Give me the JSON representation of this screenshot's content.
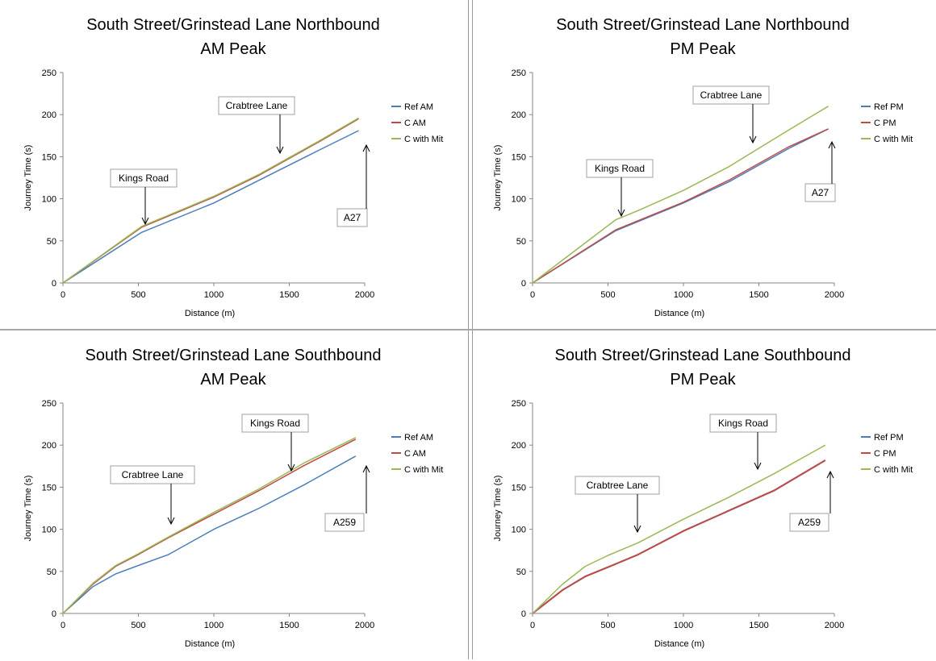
{
  "colors": {
    "ref": "#4a7ebb",
    "c": "#be4b48",
    "mit": "#98b954"
  },
  "chart_data": [
    {
      "type": "line",
      "title_line1": "South Street/Grinstead Lane Northbound",
      "title_line2": "AM Peak",
      "xlabel": "Distance (m)",
      "ylabel": "Journey Time (s)",
      "xlim": [
        0,
        2000
      ],
      "ylim": [
        0,
        250
      ],
      "xticks": [
        0,
        500,
        1000,
        1500,
        2000
      ],
      "yticks": [
        0,
        50,
        100,
        150,
        200,
        250
      ],
      "legend_position": "right",
      "series": [
        {
          "name": "Ref AM",
          "color_key": "ref",
          "width": 1.5,
          "points": [
            [
              0,
              0
            ],
            [
              520,
              60
            ],
            [
              1000,
              95
            ],
            [
              1300,
              122
            ],
            [
              1700,
              158
            ],
            [
              1960,
              181
            ]
          ]
        },
        {
          "name": "C AM",
          "color_key": "c",
          "width": 1.5,
          "points": [
            [
              0,
              0
            ],
            [
              520,
              66
            ],
            [
              1000,
              102
            ],
            [
              1300,
              128
            ],
            [
              1700,
              168
            ],
            [
              1960,
              195
            ]
          ]
        },
        {
          "name": "C with Mit",
          "color_key": "mit",
          "width": 1.5,
          "points": [
            [
              0,
              0
            ],
            [
              520,
              67
            ],
            [
              1000,
              103
            ],
            [
              1300,
              129
            ],
            [
              1700,
              169
            ],
            [
              1960,
              196
            ]
          ]
        }
      ],
      "annotations": [
        {
          "label": "Kings Road",
          "box_x": 137,
          "box_y": 210,
          "box_w": 82,
          "box_h": 22,
          "arrow": [
            [
              180,
              232
            ],
            [
              180,
              278
            ]
          ]
        },
        {
          "label": "Crabtree Lane",
          "box_x": 271,
          "box_y": 120,
          "box_w": 94,
          "box_h": 22,
          "arrow": [
            [
              347,
              142
            ],
            [
              347,
              190
            ]
          ]
        },
        {
          "label": "A27",
          "box_x": 418,
          "box_y": 259,
          "box_w": 37,
          "box_h": 22,
          "arrow": [
            [
              454,
              259
            ],
            [
              454,
              180
            ]
          ]
        }
      ]
    },
    {
      "type": "line",
      "title_line1": "South Street/Grinstead Lane Northbound",
      "title_line2": "PM Peak",
      "xlabel": "Distance (m)",
      "ylabel": "Journey Time (s)",
      "xlim": [
        0,
        2000
      ],
      "ylim": [
        0,
        250
      ],
      "xticks": [
        0,
        500,
        1000,
        1500,
        2000
      ],
      "yticks": [
        0,
        50,
        100,
        150,
        200,
        250
      ],
      "legend_position": "right",
      "series": [
        {
          "name": "Ref PM",
          "color_key": "ref",
          "width": 1.5,
          "points": [
            [
              0,
              0
            ],
            [
              550,
              62
            ],
            [
              1000,
              95
            ],
            [
              1300,
              120
            ],
            [
              1700,
              160
            ],
            [
              1960,
              183
            ]
          ]
        },
        {
          "name": "C PM",
          "color_key": "c",
          "width": 1.5,
          "points": [
            [
              0,
              0
            ],
            [
              550,
              63
            ],
            [
              1000,
              96
            ],
            [
              1300,
              122
            ],
            [
              1700,
              162
            ],
            [
              1960,
              183
            ]
          ]
        },
        {
          "name": "C with Mit",
          "color_key": "mit",
          "width": 1.5,
          "points": [
            [
              0,
              0
            ],
            [
              550,
              75
            ],
            [
              700,
              86
            ],
            [
              1000,
              110
            ],
            [
              1300,
              138
            ],
            [
              1700,
              182
            ],
            [
              1960,
              210
            ]
          ]
        }
      ],
      "annotations": [
        {
          "label": "Kings Road",
          "box_x": 145,
          "box_y": 198,
          "box_w": 82,
          "box_h": 22,
          "arrow": [
            [
              188,
              220
            ],
            [
              188,
              268
            ]
          ]
        },
        {
          "label": "Crabtree Lane",
          "box_x": 277,
          "box_y": 107,
          "box_w": 94,
          "box_h": 22,
          "arrow": [
            [
              351,
              129
            ],
            [
              351,
              177
            ]
          ]
        },
        {
          "label": "A27",
          "box_x": 416,
          "box_y": 228,
          "box_w": 37,
          "box_h": 22,
          "arrow": [
            [
              449,
              228
            ],
            [
              449,
              176
            ]
          ]
        }
      ]
    },
    {
      "type": "line",
      "title_line1": "South Street/Grinstead Lane Southbound",
      "title_line2": "AM Peak",
      "xlabel": "Distance (m)",
      "ylabel": "Journey Time (s)",
      "xlim": [
        0,
        2000
      ],
      "ylim": [
        0,
        250
      ],
      "xticks": [
        0,
        500,
        1000,
        1500,
        2000
      ],
      "yticks": [
        0,
        50,
        100,
        150,
        200,
        250
      ],
      "legend_position": "right",
      "series": [
        {
          "name": "Ref AM",
          "color_key": "ref",
          "width": 1.5,
          "points": [
            [
              0,
              0
            ],
            [
              200,
              32
            ],
            [
              350,
              47
            ],
            [
              500,
              57
            ],
            [
              700,
              70
            ],
            [
              1000,
              100
            ],
            [
              1300,
              125
            ],
            [
              1600,
              153
            ],
            [
              1940,
              187
            ]
          ]
        },
        {
          "name": "C AM",
          "color_key": "c",
          "width": 1.5,
          "points": [
            [
              0,
              0
            ],
            [
              200,
              35
            ],
            [
              350,
              56
            ],
            [
              500,
              70
            ],
            [
              700,
              90
            ],
            [
              1000,
              118
            ],
            [
              1300,
              146
            ],
            [
              1600,
              176
            ],
            [
              1940,
              207
            ]
          ]
        },
        {
          "name": "C with Mit",
          "color_key": "mit",
          "width": 1.5,
          "points": [
            [
              0,
              0
            ],
            [
              200,
              36
            ],
            [
              350,
              57
            ],
            [
              500,
              71
            ],
            [
              700,
              91
            ],
            [
              1000,
              120
            ],
            [
              1300,
              148
            ],
            [
              1600,
              179
            ],
            [
              1940,
              209
            ]
          ]
        }
      ],
      "annotations": [
        {
          "label": "Crabtree Lane",
          "box_x": 137,
          "box_y": 168,
          "box_w": 104,
          "box_h": 22,
          "arrow": [
            [
              212,
              190
            ],
            [
              212,
              240
            ]
          ]
        },
        {
          "label": "Kings Road",
          "box_x": 300,
          "box_y": 104,
          "box_w": 82,
          "box_h": 22,
          "arrow": [
            [
              361,
              126
            ],
            [
              361,
              174
            ]
          ]
        },
        {
          "label": "A259",
          "box_x": 403,
          "box_y": 227,
          "box_w": 48,
          "box_h": 22,
          "arrow": [
            [
              454,
              227
            ],
            [
              454,
              168
            ]
          ]
        }
      ]
    },
    {
      "type": "line",
      "title_line1": "South Street/Grinstead Lane Southbound",
      "title_line2": "PM Peak",
      "xlabel": "Distance (m)",
      "ylabel": "Journey Time (s)",
      "xlim": [
        0,
        2000
      ],
      "ylim": [
        0,
        250
      ],
      "xticks": [
        0,
        500,
        1000,
        1500,
        2000
      ],
      "yticks": [
        0,
        50,
        100,
        150,
        200,
        250
      ],
      "legend_position": "right",
      "series": [
        {
          "name": "Ref PM",
          "color_key": "ref",
          "width": 2,
          "points": [
            [
              0,
              0
            ],
            [
              200,
              28
            ],
            [
              350,
              44
            ],
            [
              500,
              55
            ],
            [
              700,
              70
            ],
            [
              1000,
              98
            ],
            [
              1300,
              122
            ],
            [
              1600,
              146
            ],
            [
              1940,
              182
            ]
          ]
        },
        {
          "name": "C PM",
          "color_key": "c",
          "width": 2,
          "points": [
            [
              0,
              0
            ],
            [
              200,
              28
            ],
            [
              350,
              44
            ],
            [
              500,
              55
            ],
            [
              700,
              70
            ],
            [
              1000,
              98
            ],
            [
              1300,
              122
            ],
            [
              1600,
              146
            ],
            [
              1940,
              182
            ]
          ]
        },
        {
          "name": "C with Mit",
          "color_key": "mit",
          "width": 1.5,
          "points": [
            [
              0,
              0
            ],
            [
              200,
              35
            ],
            [
              350,
              56
            ],
            [
              500,
              69
            ],
            [
              700,
              84
            ],
            [
              1000,
              112
            ],
            [
              1300,
              138
            ],
            [
              1600,
              166
            ],
            [
              1940,
              200
            ]
          ]
        }
      ],
      "annotations": [
        {
          "label": "Crabtree Lane",
          "box_x": 131,
          "box_y": 181,
          "box_w": 104,
          "box_h": 22,
          "arrow": [
            [
              208,
              203
            ],
            [
              208,
              250
            ]
          ]
        },
        {
          "label": "Kings Road",
          "box_x": 298,
          "box_y": 104,
          "box_w": 82,
          "box_h": 22,
          "arrow": [
            [
              357,
              126
            ],
            [
              357,
              172
            ]
          ]
        },
        {
          "label": "A259",
          "box_x": 397,
          "box_y": 227,
          "box_w": 48,
          "box_h": 22,
          "arrow": [
            [
              447,
              227
            ],
            [
              447,
              175
            ]
          ]
        }
      ]
    }
  ]
}
